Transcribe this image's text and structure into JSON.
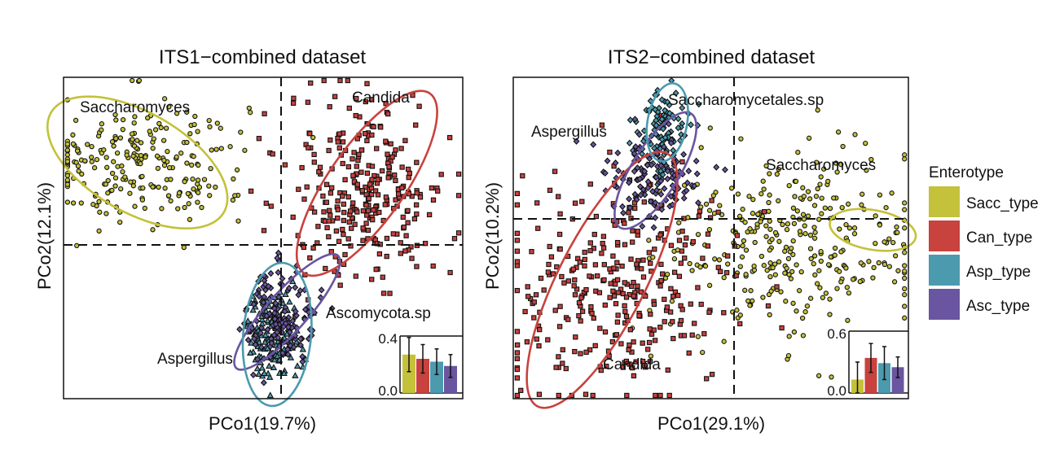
{
  "legend": {
    "title": "Enterotype",
    "items": [
      {
        "label": "Sacc_type",
        "color": "#C4C13A"
      },
      {
        "label": "Can_type",
        "color": "#C8423E"
      },
      {
        "label": "Asp_type",
        "color": "#4B9AAE"
      },
      {
        "label": "Asc_type",
        "color": "#6A55A0"
      }
    ]
  },
  "chart_data": [
    {
      "type": "scatter",
      "title": "ITS1−combined dataset",
      "xlabel": "PCo1(19.7%)",
      "ylabel": "PCo2(12.1%)",
      "xlim": [
        -1,
        1
      ],
      "ylim": [
        -1,
        1
      ],
      "series": [
        {
          "name": "Sacc_type",
          "marker": "circle",
          "center": [
            -0.62,
            0.47
          ],
          "spread": [
            0.27,
            0.2
          ],
          "count": 240
        },
        {
          "name": "Can_type",
          "marker": "square",
          "center": [
            0.52,
            0.3
          ],
          "spread": [
            0.2,
            0.3
          ],
          "count": 300
        },
        {
          "name": "Asp_type",
          "marker": "triangle",
          "center": [
            0.05,
            -0.6
          ],
          "spread": [
            0.07,
            0.13
          ],
          "count": 160
        },
        {
          "name": "Asc_type",
          "marker": "diamond",
          "center": [
            0.09,
            -0.48
          ],
          "spread": [
            0.09,
            0.15
          ],
          "count": 150
        }
      ],
      "ellipses": [
        {
          "name": "Sacc_type",
          "center": [
            -0.63,
            0.47
          ],
          "radii": [
            0.5,
            0.25
          ],
          "angle": 30
        },
        {
          "name": "Can_type",
          "center": [
            0.52,
            0.34
          ],
          "radii": [
            0.55,
            0.19
          ],
          "angle": -55
        },
        {
          "name": "Asc_type",
          "center": [
            0.12,
            -0.46
          ],
          "radii": [
            0.38,
            0.1
          ],
          "angle": -48
        },
        {
          "name": "Asp_type",
          "center": [
            0.07,
            -0.6
          ],
          "radii": [
            0.36,
            0.17
          ],
          "angle": -85
        }
      ],
      "annotations": [
        {
          "text": "Saccharomyces",
          "at": [
            -0.75,
            0.81
          ]
        },
        {
          "text": "Candida",
          "at": [
            0.77,
            0.9
          ]
        },
        {
          "text": "Ascomycota.sp",
          "at": [
            0.63,
            -0.39
          ]
        },
        {
          "text": "Aspergillus",
          "at": [
            -0.35,
            -0.71
          ]
        }
      ],
      "inset_bar": {
        "yticks": [
          "0.4",
          "0.0"
        ],
        "ylim": [
          0,
          0.4
        ],
        "categories": [
          "Sacc_type",
          "Can_type",
          "Asp_type",
          "Asc_type"
        ],
        "values": [
          0.27,
          0.24,
          0.22,
          0.19
        ],
        "errors": [
          0.12,
          0.1,
          0.09,
          0.08
        ]
      }
    },
    {
      "type": "scatter",
      "title": "ITS2−combined dataset",
      "xlabel": "PCo1(29.1%)",
      "ylabel": "PCo2(10.2%)",
      "xlim": [
        -1,
        1
      ],
      "ylim": [
        -1,
        1
      ],
      "series": [
        {
          "name": "Sacc_type",
          "marker": "circle",
          "center": [
            0.42,
            -0.05
          ],
          "spread": [
            0.33,
            0.3
          ],
          "count": 330
        },
        {
          "name": "Can_type",
          "marker": "square",
          "center": [
            -0.45,
            -0.3
          ],
          "spread": [
            0.3,
            0.32
          ],
          "count": 330
        },
        {
          "name": "Asp_type",
          "marker": "diamond",
          "center": [
            -0.25,
            0.65
          ],
          "spread": [
            0.06,
            0.13
          ],
          "count": 110
        },
        {
          "name": "Asc_type",
          "marker": "diamond",
          "center": [
            -0.3,
            0.38
          ],
          "spread": [
            0.14,
            0.14
          ],
          "count": 130
        }
      ],
      "ellipses": [
        {
          "name": "Sacc_type",
          "center": [
            0.82,
            0.05
          ],
          "radii": [
            0.22,
            0.1
          ],
          "angle": 10
        },
        {
          "name": "Can_type",
          "center": [
            -0.55,
            -0.26
          ],
          "radii": [
            0.72,
            0.22
          ],
          "angle": -63
        },
        {
          "name": "Asc_type",
          "center": [
            -0.28,
            0.42
          ],
          "radii": [
            0.34,
            0.12
          ],
          "angle": -58
        },
        {
          "name": "Asp_type",
          "center": [
            -0.22,
            0.72
          ],
          "radii": [
            0.2,
            0.1
          ],
          "angle": -80
        }
      ],
      "annotations": [
        {
          "text": "Saccharomycetales.sp",
          "at": [
            0.01,
            0.94
          ]
        },
        {
          "text": "Aspergillus",
          "at": [
            -0.7,
            0.67
          ]
        },
        {
          "text": "Saccharomyces",
          "at": [
            0.6,
            0.4
          ]
        },
        {
          "text": "Candida",
          "at": [
            -0.41,
            -0.81
          ]
        }
      ],
      "inset_bar": {
        "yticks": [
          "0.6",
          "0.0"
        ],
        "ylim": [
          0,
          0.6
        ],
        "categories": [
          "Sacc_type",
          "Can_type",
          "Asp_type",
          "Asc_type"
        ],
        "values": [
          0.13,
          0.34,
          0.29,
          0.25
        ],
        "errors": [
          0.17,
          0.14,
          0.16,
          0.1
        ]
      }
    }
  ]
}
